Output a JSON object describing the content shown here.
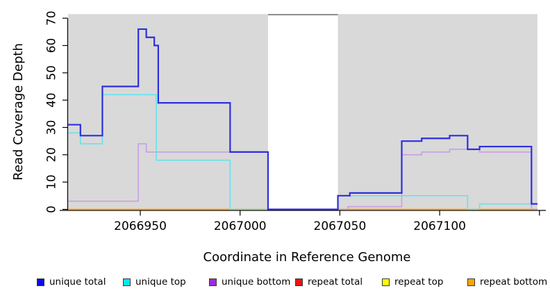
{
  "chart_data": {
    "type": "line",
    "step": true,
    "title": "",
    "xlabel": "Coordinate in Reference Genome",
    "ylabel": "Read Coverage Depth",
    "xlim": [
      2066913.8,
      2067153.2
    ],
    "ylim": [
      0,
      71.5
    ],
    "grid": false,
    "x_ticks": [
      {
        "value": 2066950,
        "label": "2066950"
      },
      {
        "value": 2067000,
        "label": "2067000"
      },
      {
        "value": 2067050,
        "label": "2067050"
      },
      {
        "value": 2067100,
        "label": "2067100"
      },
      {
        "value": 2067150,
        "label": ""
      }
    ],
    "y_ticks": [
      0,
      10,
      20,
      30,
      40,
      50,
      60,
      70
    ],
    "background_regions": [
      {
        "name": "left-shaded-region",
        "from": 2066913.8,
        "to": 2067014,
        "color": "#d9d9d9"
      },
      {
        "name": "right-shaded-region",
        "from": 2067049,
        "to": 2067149,
        "color": "#d9d9d9"
      }
    ],
    "gap_connector": {
      "from": 2067014,
      "to": 2067049,
      "color": "#8a8a8a"
    },
    "series": [
      {
        "name": "repeat total",
        "color": "#e01414",
        "width": 1.4,
        "steps": [
          [
            2066913.8,
            0
          ]
        ],
        "end": 2067149
      },
      {
        "name": "repeat top",
        "color": "#f5f520",
        "width": 1.4,
        "steps": [
          [
            2066913.8,
            0
          ]
        ],
        "end": 2067149
      },
      {
        "name": "repeat bottom",
        "color": "#ffa321",
        "width": 2,
        "steps": [
          [
            2066913.8,
            0
          ]
        ],
        "end": 2067149
      },
      {
        "name": "unique bottom",
        "color": "#c79fe3",
        "width": 1.6,
        "steps": [
          [
            2066913.8,
            3
          ],
          [
            2066949,
            24
          ],
          [
            2066953,
            21
          ],
          [
            2067014,
            0
          ],
          [
            2067054,
            1
          ],
          [
            2067081,
            20
          ],
          [
            2067091,
            21
          ],
          [
            2067105,
            22
          ],
          [
            2067120,
            21
          ],
          [
            2067146,
            0
          ]
        ],
        "end": 2067149
      },
      {
        "name": "unique top",
        "color": "#63e3ef",
        "width": 1.6,
        "steps": [
          [
            2066913.8,
            28
          ],
          [
            2066920,
            24
          ],
          [
            2066931,
            42
          ],
          [
            2066958,
            18
          ],
          [
            2066995,
            0
          ],
          [
            2067049,
            5
          ],
          [
            2067114,
            0
          ],
          [
            2067120,
            2
          ]
        ],
        "end": 2067149
      },
      {
        "name": "unique total",
        "color": "#2e2ede",
        "width": 2.2,
        "steps": [
          [
            2066913.8,
            31
          ],
          [
            2066920,
            27
          ],
          [
            2066931,
            45
          ],
          [
            2066949,
            66
          ],
          [
            2066953,
            63
          ],
          [
            2066957,
            60
          ],
          [
            2066959,
            39
          ],
          [
            2066995,
            21
          ],
          [
            2067014,
            0
          ],
          [
            2067049,
            5
          ],
          [
            2067055,
            6
          ],
          [
            2067081,
            25
          ],
          [
            2067091,
            26
          ],
          [
            2067105,
            27
          ],
          [
            2067114,
            22
          ],
          [
            2067120,
            23
          ],
          [
            2067146,
            2
          ]
        ],
        "end": 2067149
      }
    ],
    "legend": [
      {
        "label": "unique total",
        "color": "#0b0bef"
      },
      {
        "label": "unique top",
        "color": "#00e9f0"
      },
      {
        "label": "unique bottom",
        "color": "#a228dd"
      },
      {
        "label": "repeat total",
        "color": "#ee1111"
      },
      {
        "label": "repeat top",
        "color": "#fdfd00"
      },
      {
        "label": "repeat bottom",
        "color": "#ffa500"
      }
    ],
    "legend_position": "bottom"
  }
}
